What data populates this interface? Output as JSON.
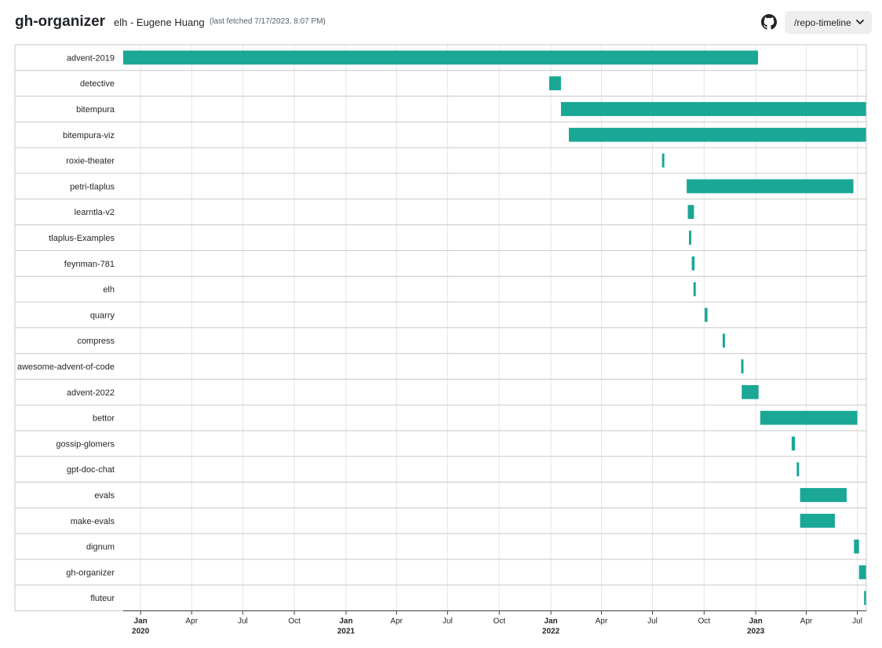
{
  "header": {
    "app_title": "gh-organizer",
    "user": "elh - Eugene Huang",
    "last_fetched": "(last fetched 7/17/2023, 8:07 PM)",
    "github_icon": "github-icon",
    "nav_select_value": "/repo-timeline",
    "nav_select_icon": "chevron-down-icon"
  },
  "colors": {
    "bar": "#1aa796",
    "grid": "#e4e6ea",
    "row_line": "#c8c8c8",
    "text": "#1f2328"
  },
  "chart_data": {
    "type": "bar",
    "orientation": "horizontal-timeline",
    "x_axis": {
      "type": "time",
      "range": [
        "2019-12-01",
        "2023-07-17"
      ],
      "ticks": [
        {
          "date": "2020-01-01",
          "label": "Jan",
          "year": "2020"
        },
        {
          "date": "2020-04-01",
          "label": "Apr",
          "year": ""
        },
        {
          "date": "2020-07-01",
          "label": "Jul",
          "year": ""
        },
        {
          "date": "2020-10-01",
          "label": "Oct",
          "year": ""
        },
        {
          "date": "2021-01-01",
          "label": "Jan",
          "year": "2021"
        },
        {
          "date": "2021-04-01",
          "label": "Apr",
          "year": ""
        },
        {
          "date": "2021-07-01",
          "label": "Jul",
          "year": ""
        },
        {
          "date": "2021-10-01",
          "label": "Oct",
          "year": ""
        },
        {
          "date": "2022-01-01",
          "label": "Jan",
          "year": "2022"
        },
        {
          "date": "2022-04-01",
          "label": "Apr",
          "year": ""
        },
        {
          "date": "2022-07-01",
          "label": "Jul",
          "year": ""
        },
        {
          "date": "2022-10-01",
          "label": "Oct",
          "year": ""
        },
        {
          "date": "2023-01-01",
          "label": "Jan",
          "year": "2023"
        },
        {
          "date": "2023-04-01",
          "label": "Apr",
          "year": ""
        },
        {
          "date": "2023-07-01",
          "label": "Jul",
          "year": ""
        }
      ]
    },
    "repos": [
      {
        "name": "advent-2019",
        "start": "2019-12-01",
        "end": "2023-01-05"
      },
      {
        "name": "detective",
        "start": "2021-12-29",
        "end": "2022-01-19"
      },
      {
        "name": "bitempura",
        "start": "2022-01-19",
        "end": "2023-07-17"
      },
      {
        "name": "bitempura-viz",
        "start": "2022-02-02",
        "end": "2023-07-17"
      },
      {
        "name": "roxie-theater",
        "start": "2022-07-18",
        "end": "2022-07-22"
      },
      {
        "name": "petri-tlaplus",
        "start": "2022-08-31",
        "end": "2023-06-24"
      },
      {
        "name": "learntla-v2",
        "start": "2022-09-02",
        "end": "2022-09-13"
      },
      {
        "name": "tlaplus-Examples",
        "start": "2022-09-04",
        "end": "2022-09-08"
      },
      {
        "name": "feynman-781",
        "start": "2022-09-09",
        "end": "2022-09-14"
      },
      {
        "name": "elh",
        "start": "2022-09-12",
        "end": "2022-09-16"
      },
      {
        "name": "quarry",
        "start": "2022-10-02",
        "end": "2022-10-07"
      },
      {
        "name": "compress",
        "start": "2022-11-03",
        "end": "2022-11-07"
      },
      {
        "name": "awesome-advent-of-code",
        "start": "2022-12-06",
        "end": "2022-12-09"
      },
      {
        "name": "advent-2022",
        "start": "2022-12-07",
        "end": "2023-01-06"
      },
      {
        "name": "bettor",
        "start": "2023-01-09",
        "end": "2023-07-01"
      },
      {
        "name": "gossip-glomers",
        "start": "2023-03-06",
        "end": "2023-03-12"
      },
      {
        "name": "gpt-doc-chat",
        "start": "2023-03-15",
        "end": "2023-03-18"
      },
      {
        "name": "evals",
        "start": "2023-03-21",
        "end": "2023-06-12"
      },
      {
        "name": "make-evals",
        "start": "2023-03-21",
        "end": "2023-05-22"
      },
      {
        "name": "dignum",
        "start": "2023-06-25",
        "end": "2023-07-04"
      },
      {
        "name": "gh-organizer",
        "start": "2023-07-04",
        "end": "2023-07-17"
      },
      {
        "name": "fluteur",
        "start": "2023-07-13",
        "end": "2023-07-17"
      }
    ]
  }
}
